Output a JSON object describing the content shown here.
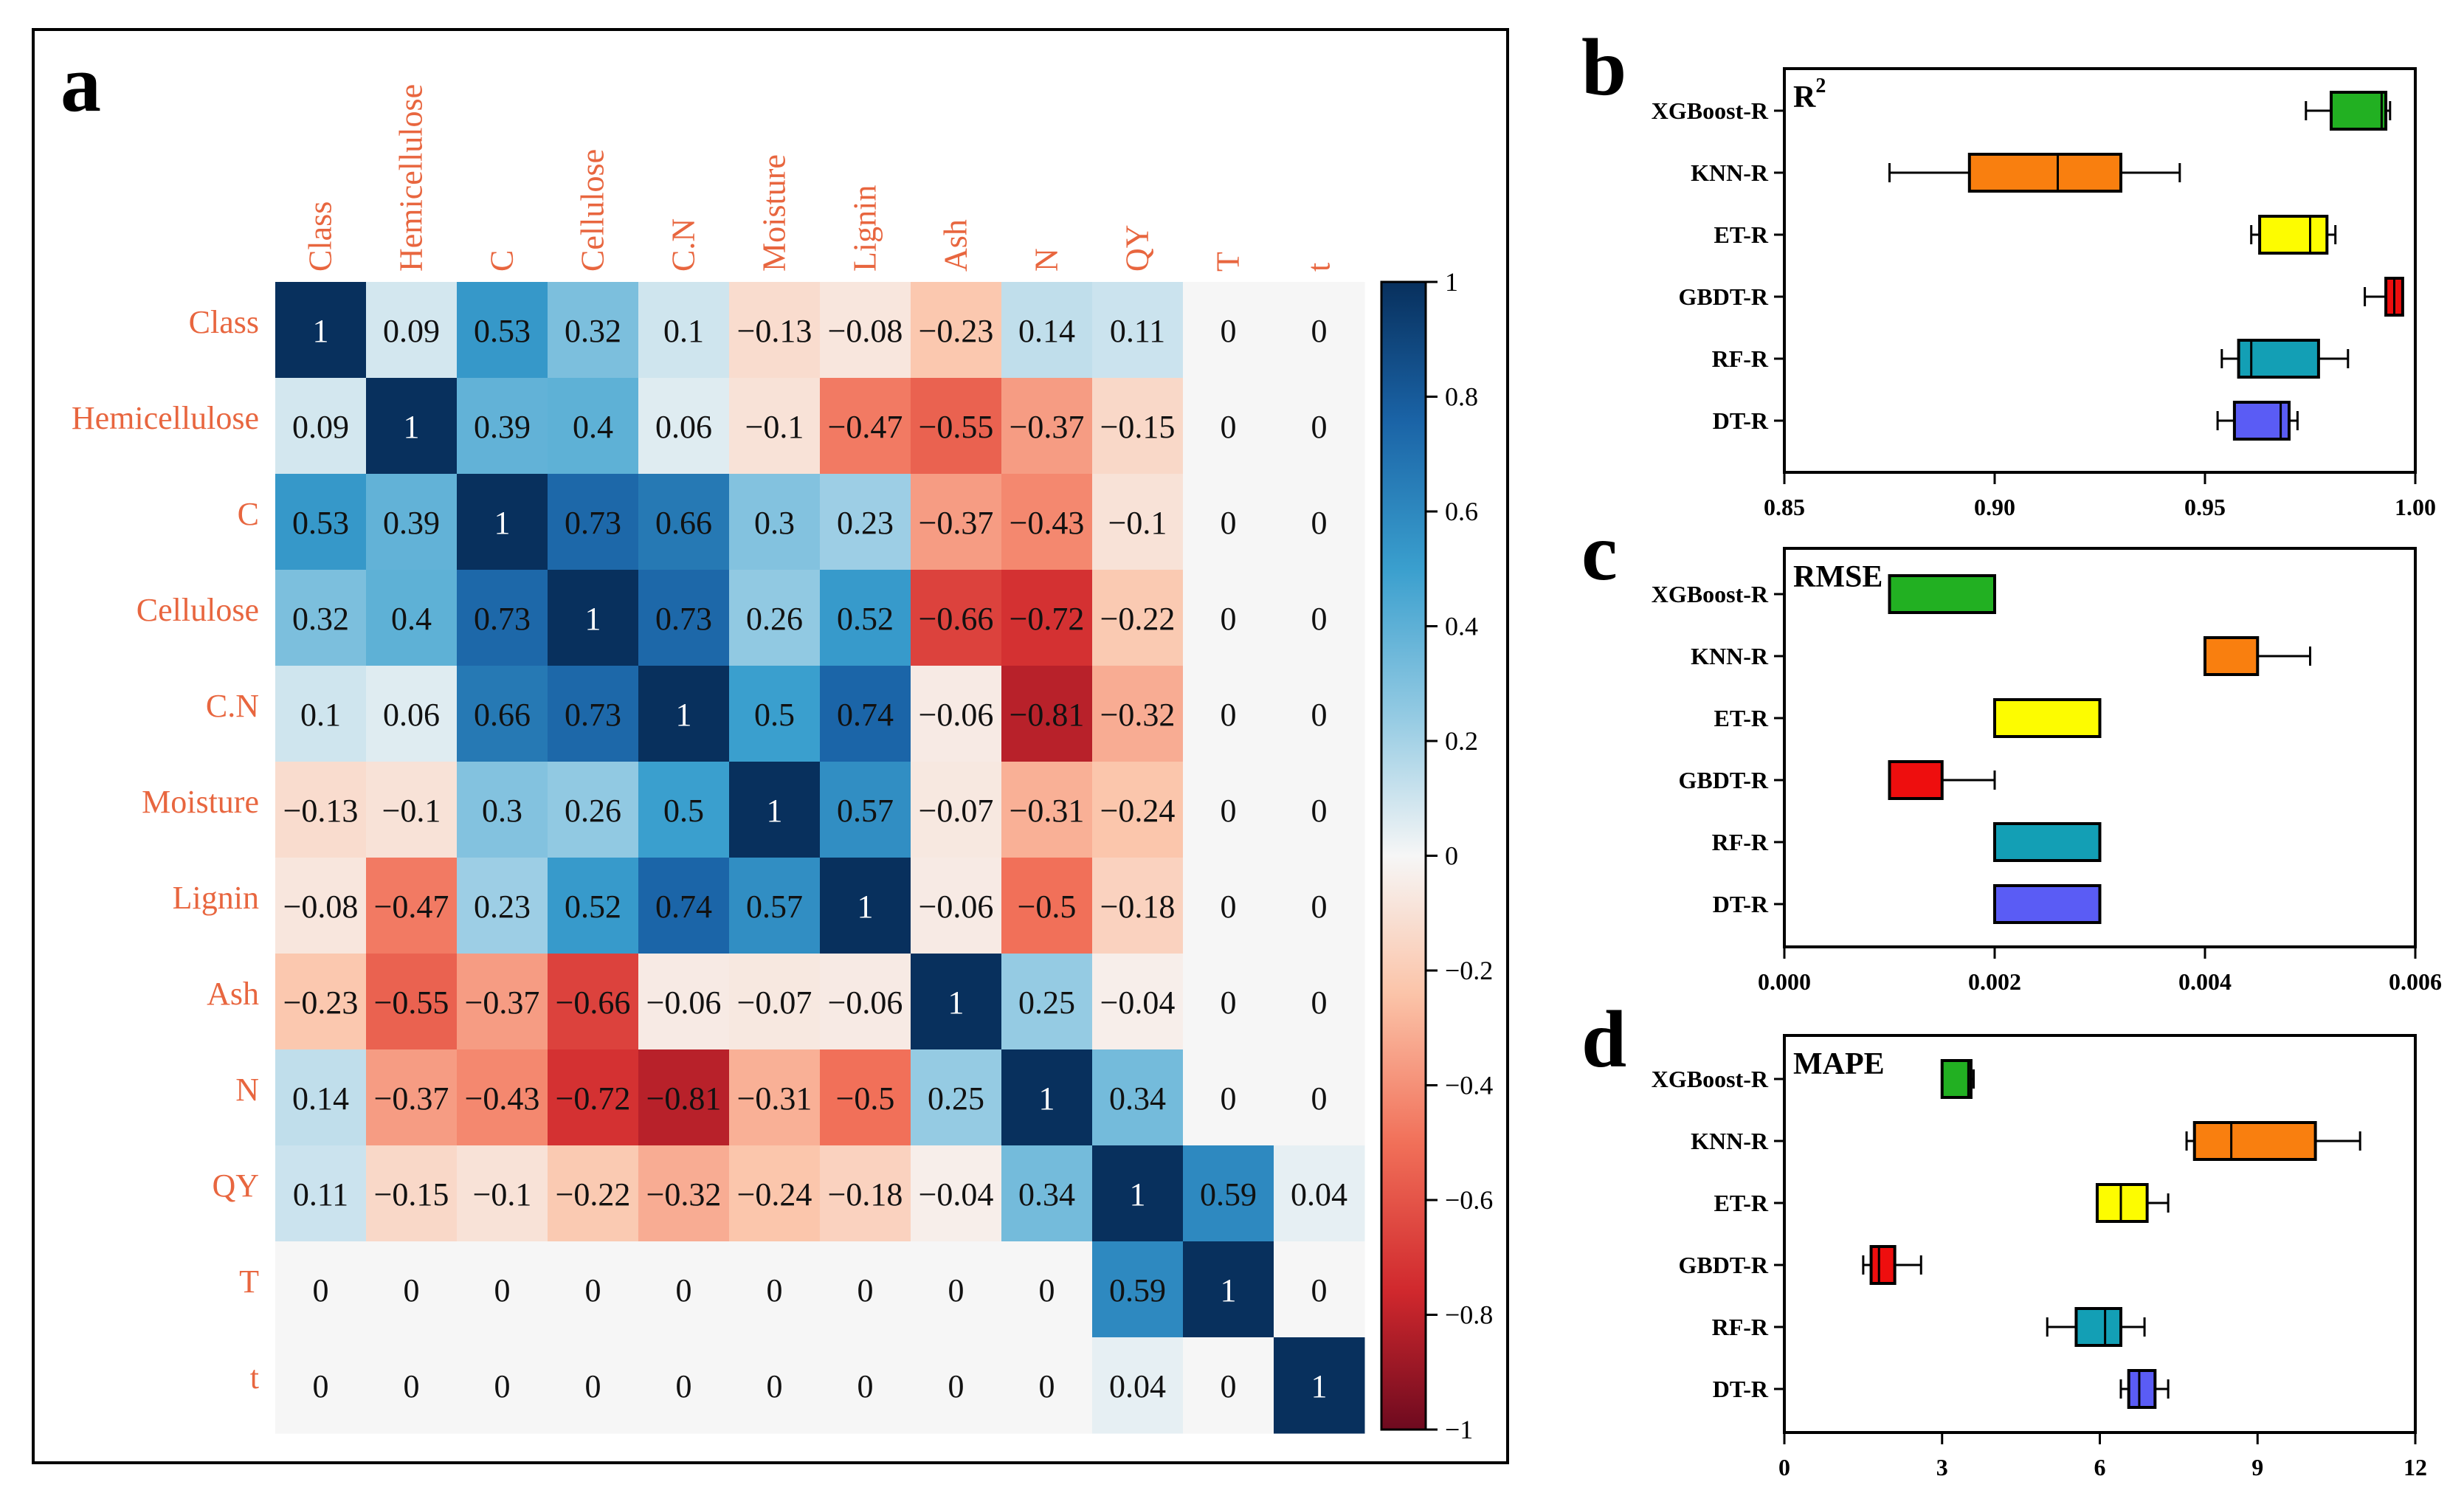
{
  "chart_data": [
    {
      "type": "heatmap",
      "panel": "a",
      "labels_top": [
        "Class",
        "Hemicellulose",
        "C",
        "Cellulose",
        "C.N",
        "Moisture",
        "Lignin",
        "Ash",
        "N",
        "QY",
        "T",
        "t"
      ],
      "labels_left": [
        "Class",
        "Hemicellulose",
        "C",
        "Cellulose",
        "C.N",
        "Moisture",
        "Lignin",
        "Ash",
        "N",
        "QY",
        "T",
        "t"
      ],
      "matrix": [
        [
          1,
          0.09,
          0.53,
          0.32,
          0.1,
          -0.13,
          -0.08,
          -0.23,
          0.14,
          0.11,
          0,
          0
        ],
        [
          0.09,
          1,
          0.39,
          0.4,
          0.06,
          -0.1,
          -0.47,
          -0.55,
          -0.37,
          -0.15,
          0,
          0
        ],
        [
          0.53,
          0.39,
          1,
          0.73,
          0.66,
          0.3,
          0.23,
          -0.37,
          -0.43,
          -0.1,
          0,
          0
        ],
        [
          0.32,
          0.4,
          0.73,
          1,
          0.73,
          0.26,
          0.52,
          -0.66,
          -0.72,
          -0.22,
          0,
          0
        ],
        [
          0.1,
          0.06,
          0.66,
          0.73,
          1,
          0.5,
          0.74,
          -0.06,
          -0.81,
          -0.32,
          0,
          0
        ],
        [
          -0.13,
          -0.1,
          0.3,
          0.26,
          0.5,
          1,
          0.57,
          -0.07,
          -0.31,
          -0.24,
          0,
          0
        ],
        [
          -0.08,
          -0.47,
          0.23,
          0.52,
          0.74,
          0.57,
          1,
          -0.06,
          -0.5,
          -0.18,
          0,
          0
        ],
        [
          -0.23,
          -0.55,
          -0.37,
          -0.66,
          -0.06,
          -0.07,
          -0.06,
          1,
          0.25,
          -0.04,
          0,
          0
        ],
        [
          0.14,
          -0.37,
          -0.43,
          -0.72,
          -0.81,
          -0.31,
          -0.5,
          0.25,
          1,
          0.34,
          0,
          0
        ],
        [
          0.11,
          -0.15,
          -0.1,
          -0.22,
          -0.32,
          -0.24,
          -0.18,
          -0.04,
          0.34,
          1,
          0.59,
          0.04
        ],
        [
          0,
          0,
          0,
          0,
          0,
          0,
          0,
          0,
          0,
          0.59,
          1,
          0
        ],
        [
          0,
          0,
          0,
          0,
          0,
          0,
          0,
          0,
          0,
          0.04,
          0,
          1
        ]
      ],
      "colorbar": {
        "range": [
          -1,
          1
        ],
        "ticks": [
          1,
          0.8,
          0.6,
          0.4,
          0.2,
          0,
          -0.2,
          -0.4,
          -0.6,
          -0.8,
          -1
        ],
        "tick_labels": [
          "1",
          "0.8",
          "0.6",
          "0.4",
          "0.2",
          "0",
          "−0.2",
          "−0.4",
          "−0.6",
          "−0.8",
          "−1"
        ]
      }
    },
    {
      "type": "box",
      "panel": "b",
      "title": "R²",
      "title_base": "R",
      "title_sup": "2",
      "categories": [
        "XGBoost-R",
        "KNN-R",
        "ET-R",
        "GBDT-R",
        "RF-R",
        "DT-R"
      ],
      "colors": [
        "#22b022",
        "#f97f0f",
        "#fdfc00",
        "#ee0e0e",
        "#139fb5",
        "#5a5cf5"
      ],
      "xlim": [
        0.85,
        1.0
      ],
      "ticks": [
        0.85,
        0.9,
        0.95,
        1.0
      ],
      "tick_labels": [
        "0.85",
        "0.90",
        "0.95",
        "1.00"
      ],
      "boxes": [
        {
          "min": 0.974,
          "q1": 0.98,
          "median": 0.992,
          "q3": 0.993,
          "max": 0.994
        },
        {
          "min": 0.875,
          "q1": 0.894,
          "median": 0.915,
          "q3": 0.93,
          "max": 0.944
        },
        {
          "min": 0.961,
          "q1": 0.963,
          "median": 0.975,
          "q3": 0.979,
          "max": 0.981
        },
        {
          "min": 0.988,
          "q1": 0.993,
          "median": 0.995,
          "q3": 0.997,
          "max": 0.997
        },
        {
          "min": 0.954,
          "q1": 0.958,
          "median": 0.961,
          "q3": 0.977,
          "max": 0.984
        },
        {
          "min": 0.953,
          "q1": 0.957,
          "median": 0.968,
          "q3": 0.97,
          "max": 0.972
        }
      ]
    },
    {
      "type": "box",
      "panel": "c",
      "title": "RMSE",
      "categories": [
        "XGBoost-R",
        "KNN-R",
        "ET-R",
        "GBDT-R",
        "RF-R",
        "DT-R"
      ],
      "colors": [
        "#22b022",
        "#f97f0f",
        "#fdfc00",
        "#ee0e0e",
        "#139fb5",
        "#5a5cf5"
      ],
      "xlim": [
        0,
        0.006
      ],
      "ticks": [
        0,
        0.002,
        0.004,
        0.006
      ],
      "tick_labels": [
        "0.000",
        "0.002",
        "0.004",
        "0.006"
      ],
      "boxes": [
        {
          "min": 0.001,
          "q1": 0.001,
          "median": 0.002,
          "q3": 0.002,
          "max": 0.002
        },
        {
          "min": 0.004,
          "q1": 0.004,
          "median": 0.0045,
          "q3": 0.0045,
          "max": 0.005
        },
        {
          "min": 0.002,
          "q1": 0.002,
          "median": 0.003,
          "q3": 0.003,
          "max": 0.003
        },
        {
          "min": 0.001,
          "q1": 0.001,
          "median": 0.0015,
          "q3": 0.0015,
          "max": 0.002
        },
        {
          "min": 0.002,
          "q1": 0.002,
          "median": 0.003,
          "q3": 0.003,
          "max": 0.003
        },
        {
          "min": 0.002,
          "q1": 0.002,
          "median": 0.003,
          "q3": 0.003,
          "max": 0.003
        }
      ]
    },
    {
      "type": "box",
      "panel": "d",
      "title": "MAPE",
      "categories": [
        "XGBoost-R",
        "KNN-R",
        "ET-R",
        "GBDT-R",
        "RF-R",
        "DT-R"
      ],
      "colors": [
        "#22b022",
        "#f97f0f",
        "#fdfc00",
        "#ee0e0e",
        "#139fb5",
        "#5a5cf5"
      ],
      "xlim": [
        0,
        12
      ],
      "ticks": [
        0,
        3,
        6,
        9,
        12
      ],
      "tick_labels": [
        "0",
        "3",
        "6",
        "9",
        "12"
      ],
      "boxes": [
        {
          "min": 3.0,
          "q1": 3.0,
          "median": 3.5,
          "q3": 3.55,
          "max": 3.6
        },
        {
          "min": 7.65,
          "q1": 7.8,
          "median": 8.5,
          "q3": 10.1,
          "max": 10.95
        },
        {
          "min": 5.95,
          "q1": 5.95,
          "median": 6.4,
          "q3": 6.9,
          "max": 7.3
        },
        {
          "min": 1.5,
          "q1": 1.65,
          "median": 1.8,
          "q3": 2.1,
          "max": 2.6
        },
        {
          "min": 5.0,
          "q1": 5.55,
          "median": 6.1,
          "q3": 6.4,
          "max": 6.85
        },
        {
          "min": 6.4,
          "q1": 6.55,
          "median": 6.75,
          "q3": 7.05,
          "max": 7.3
        }
      ]
    }
  ],
  "panels": {
    "a": "a",
    "b": "b",
    "c": "c",
    "d": "d"
  }
}
